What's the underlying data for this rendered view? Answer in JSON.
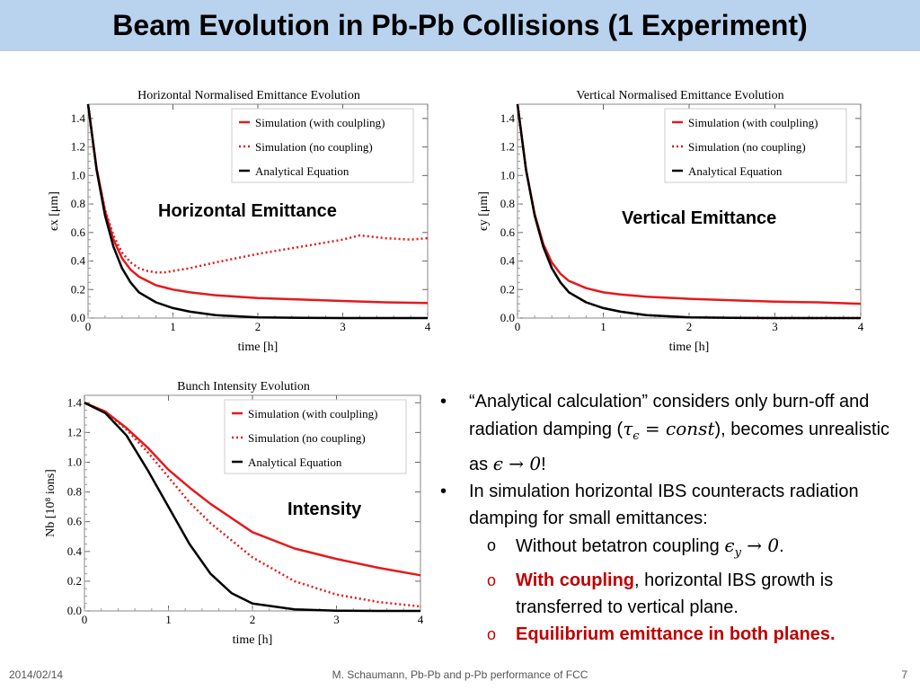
{
  "slide": {
    "title": "Beam Evolution in Pb-Pb Collisions (1 Experiment)",
    "footer_date": "2014/02/14",
    "footer_center": "M. Schaumann, Pb-Pb and p-Pb performance of FCC",
    "page_number": "7"
  },
  "labels": {
    "horizontal": "Horizontal Emittance",
    "vertical": "Vertical Emittance",
    "intensity": "Intensity"
  },
  "bullets": {
    "b1_part1": "“Analytical calculation” considers only burn-off and radiation damping (",
    "b1_math1": "τ",
    "b1_math1_sub": "ϵ",
    "b1_math1_rest": " = const",
    "b1_part2": "),",
    "b1_part3": "becomes unrealistic as ",
    "b1_math2": "ϵ → 0",
    "b1_part4": "!",
    "b2": "In simulation horizontal IBS counteracts radiation damping for small emittances:",
    "s1_part1": "Without betatron coupling ",
    "s1_math": "ϵ",
    "s1_math_sub": "y",
    "s1_math_rest": " → 0",
    "s1_part2": ".",
    "s2_red": "With coupling",
    "s2_rest": ", horizontal IBS growth is transferred to vertical plane.",
    "s3_red": "Equilibrium emittance in both planes.",
    "sub_marker": "o"
  },
  "chart_data": [
    {
      "type": "line",
      "title": "Horizontal Normalised Emittance Evolution",
      "xlabel": "time [h]",
      "ylabel": "ϵx [μm]",
      "xlim": [
        0,
        4
      ],
      "ylim": [
        0,
        1.5
      ],
      "xticks": [
        "0",
        "1",
        "2",
        "3",
        "4"
      ],
      "yticks": [
        "0.0",
        "0.2",
        "0.4",
        "0.6",
        "0.8",
        "1.0",
        "1.2",
        "1.4"
      ],
      "legend_position": "top-right",
      "series": [
        {
          "name": "Simulation (with coulpling)",
          "color": "#e41a1c",
          "style": "solid",
          "x": [
            0,
            0.1,
            0.2,
            0.3,
            0.4,
            0.5,
            0.6,
            0.8,
            1.0,
            1.2,
            1.5,
            2.0,
            2.5,
            3.0,
            3.5,
            4.0
          ],
          "y": [
            1.5,
            1.05,
            0.75,
            0.55,
            0.42,
            0.34,
            0.29,
            0.23,
            0.2,
            0.18,
            0.16,
            0.14,
            0.13,
            0.12,
            0.11,
            0.105
          ]
        },
        {
          "name": "Simulation (no coupling)",
          "color": "#e41a1c",
          "style": "dotted",
          "x": [
            0,
            0.1,
            0.2,
            0.3,
            0.4,
            0.5,
            0.6,
            0.7,
            0.8,
            0.9,
            1.0,
            1.2,
            1.5,
            2.0,
            2.5,
            3.0,
            3.2,
            3.5,
            3.8,
            4.0
          ],
          "y": [
            1.5,
            1.05,
            0.76,
            0.58,
            0.46,
            0.39,
            0.35,
            0.33,
            0.32,
            0.32,
            0.33,
            0.35,
            0.39,
            0.45,
            0.5,
            0.55,
            0.58,
            0.56,
            0.55,
            0.56
          ]
        },
        {
          "name": "Analytical Equation",
          "color": "#000000",
          "style": "solid",
          "x": [
            0,
            0.1,
            0.2,
            0.3,
            0.4,
            0.5,
            0.6,
            0.8,
            1.0,
            1.2,
            1.5,
            2.0,
            2.5,
            3.0,
            3.5,
            4.0
          ],
          "y": [
            1.5,
            1.04,
            0.72,
            0.5,
            0.35,
            0.25,
            0.18,
            0.11,
            0.07,
            0.045,
            0.02,
            0.005,
            0.001,
            0.0,
            0.0,
            0.0
          ]
        }
      ]
    },
    {
      "type": "line",
      "title": "Vertical Normalised Emittance Evolution",
      "xlabel": "time [h]",
      "ylabel": "ϵy [μm]",
      "xlim": [
        0,
        4
      ],
      "ylim": [
        0,
        1.5
      ],
      "xticks": [
        "0",
        "1",
        "2",
        "3",
        "4"
      ],
      "yticks": [
        "0.0",
        "0.2",
        "0.4",
        "0.6",
        "0.8",
        "1.0",
        "1.2",
        "1.4"
      ],
      "legend_position": "top-right",
      "series": [
        {
          "name": "Simulation (with coulpling)",
          "color": "#e41a1c",
          "style": "solid",
          "x": [
            0,
            0.1,
            0.2,
            0.3,
            0.4,
            0.5,
            0.6,
            0.8,
            1.0,
            1.2,
            1.5,
            2.0,
            2.5,
            3.0,
            3.5,
            4.0
          ],
          "y": [
            1.5,
            1.04,
            0.73,
            0.52,
            0.39,
            0.31,
            0.26,
            0.21,
            0.18,
            0.165,
            0.15,
            0.135,
            0.125,
            0.115,
            0.11,
            0.1
          ]
        },
        {
          "name": "Simulation (no coupling)",
          "color": "#e41a1c",
          "style": "dotted",
          "x": [
            0,
            0.1,
            0.2,
            0.3,
            0.4,
            0.5,
            0.6,
            0.8,
            1.0,
            1.2,
            1.5,
            2.0,
            2.5,
            3.0,
            3.5,
            4.0
          ],
          "y": [
            1.5,
            1.04,
            0.72,
            0.5,
            0.35,
            0.25,
            0.18,
            0.11,
            0.07,
            0.045,
            0.02,
            0.005,
            0.001,
            0.0,
            0.0,
            0.0
          ]
        },
        {
          "name": "Analytical Equation",
          "color": "#000000",
          "style": "solid",
          "x": [
            0,
            0.1,
            0.2,
            0.3,
            0.4,
            0.5,
            0.6,
            0.8,
            1.0,
            1.2,
            1.5,
            2.0,
            2.5,
            3.0,
            3.5,
            4.0
          ],
          "y": [
            1.5,
            1.04,
            0.72,
            0.5,
            0.35,
            0.25,
            0.18,
            0.11,
            0.07,
            0.045,
            0.02,
            0.005,
            0.001,
            0.0,
            0.0,
            0.0
          ]
        }
      ]
    },
    {
      "type": "line",
      "title": "Bunch Intensity Evolution",
      "xlabel": "time [h]",
      "ylabel": "Nb [10⁸ ions]",
      "xlim": [
        0,
        4
      ],
      "ylim": [
        0,
        1.45
      ],
      "xticks": [
        "0",
        "1",
        "2",
        "3",
        "4"
      ],
      "yticks": [
        "0.0",
        "0.2",
        "0.4",
        "0.6",
        "0.8",
        "1.0",
        "1.2",
        "1.4"
      ],
      "legend_position": "top-right",
      "series": [
        {
          "name": "Simulation (with coulpling)",
          "color": "#e41a1c",
          "style": "solid",
          "x": [
            0,
            0.25,
            0.5,
            0.75,
            1.0,
            1.25,
            1.5,
            2.0,
            2.5,
            3.0,
            3.5,
            4.0
          ],
          "y": [
            1.4,
            1.34,
            1.23,
            1.1,
            0.95,
            0.83,
            0.72,
            0.53,
            0.42,
            0.35,
            0.29,
            0.24
          ]
        },
        {
          "name": "Simulation (no coupling)",
          "color": "#e41a1c",
          "style": "dotted",
          "x": [
            0,
            0.25,
            0.5,
            0.75,
            1.0,
            1.25,
            1.5,
            2.0,
            2.5,
            3.0,
            3.5,
            4.0
          ],
          "y": [
            1.4,
            1.34,
            1.22,
            1.07,
            0.9,
            0.73,
            0.59,
            0.36,
            0.2,
            0.11,
            0.06,
            0.03
          ]
        },
        {
          "name": "Analytical Equation",
          "color": "#000000",
          "style": "solid",
          "x": [
            0,
            0.25,
            0.5,
            0.75,
            1.0,
            1.25,
            1.5,
            1.75,
            2.0,
            2.5,
            3.0,
            3.5,
            4.0
          ],
          "y": [
            1.4,
            1.33,
            1.18,
            0.95,
            0.7,
            0.45,
            0.25,
            0.12,
            0.05,
            0.01,
            0.002,
            0.0,
            0.0
          ]
        }
      ]
    }
  ]
}
